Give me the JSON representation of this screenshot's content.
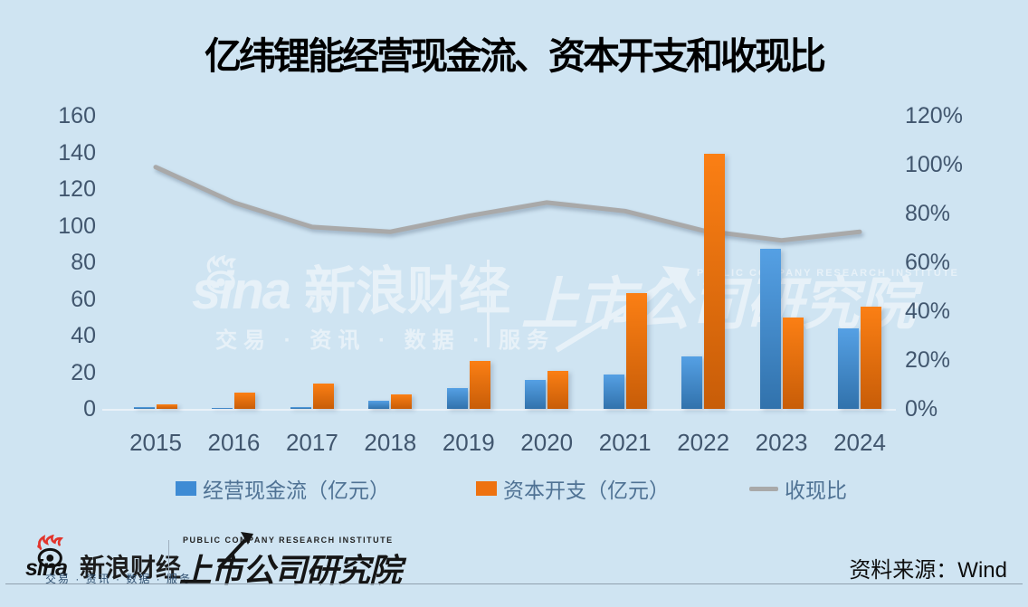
{
  "title": "亿纬锂能经营现金流、资本开支和收现比",
  "chart_data": {
    "type": "bar",
    "title": "亿纬锂能经营现金流、资本开支和收现比",
    "categories": [
      "2015",
      "2016",
      "2017",
      "2018",
      "2019",
      "2020",
      "2021",
      "2022",
      "2023",
      "2024"
    ],
    "series": [
      {
        "name": "经营现金流（亿元）",
        "kind": "bar",
        "axis": "left",
        "values": [
          0.8,
          0.6,
          0.9,
          4.4,
          11.2,
          15.6,
          18.7,
          28.7,
          87.2,
          44.0
        ]
      },
      {
        "name": "资本开支（亿元）",
        "kind": "bar",
        "axis": "left",
        "values": [
          2.7,
          8.9,
          13.9,
          7.7,
          26.0,
          20.6,
          63.0,
          139.3,
          49.8,
          55.6
        ]
      },
      {
        "name": "收现比",
        "kind": "line",
        "axis": "right",
        "unit": "%",
        "values": [
          99,
          84.5,
          74.5,
          72.5,
          79,
          84.5,
          81,
          73,
          69,
          72.5
        ]
      }
    ],
    "left_axis": {
      "min": 0,
      "max": 160,
      "step": 20,
      "ticks": [
        "0",
        "20",
        "40",
        "60",
        "80",
        "100",
        "120",
        "140",
        "160"
      ]
    },
    "right_axis": {
      "min": 0,
      "max": 120,
      "step": 20,
      "suffix": "%",
      "ticks": [
        "0%",
        "20%",
        "40%",
        "60%",
        "80%",
        "100%",
        "120%"
      ]
    },
    "legend_position": "bottom",
    "grid": false
  },
  "colors": {
    "background": "#cfe4f2",
    "bar_blue": "#3e8bd4",
    "bar_blue_top": "#55a0e4",
    "bar_blue_bottom": "#3172ac",
    "bar_orange": "#ee7210",
    "bar_orange_top": "#fb7f14",
    "bar_orange_bottom": "#c85d08",
    "line_gray": "#a9a9a9",
    "axis_text": "#41566e",
    "legend_text": "#4f7294",
    "title_text": "#000000",
    "sina_red": "#e2342b"
  },
  "watermark": {
    "sina": "sina",
    "sina_cn": "新浪财经",
    "tagline": "交易 · 资讯 · 数据 · 服务",
    "institute": "上市公司研究院",
    "institute_en": "PUBLIC COMPANY RESEARCH INSTITUTE"
  },
  "footer": {
    "sina": "sina",
    "sina_cn": "新浪财经",
    "tagline": "交易 · 资讯 · 数据 · 服务",
    "institute": "上市公司研究院",
    "institute_en": "PUBLIC COMPANY RESEARCH INSTITUTE",
    "source": "资料来源：Wind"
  }
}
